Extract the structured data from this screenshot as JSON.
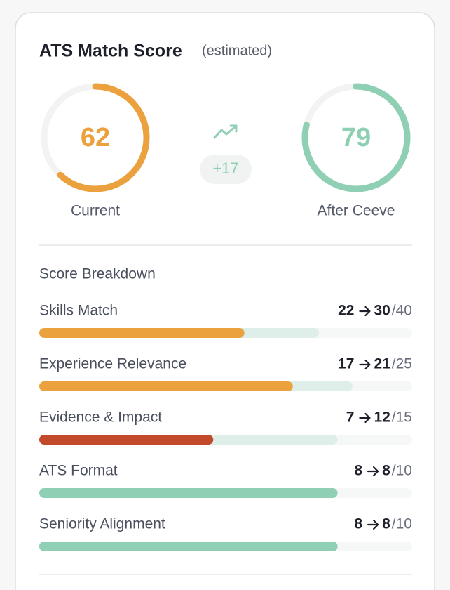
{
  "header": {
    "title": "ATS Match Score",
    "subtitle": "(estimated)"
  },
  "gauges": [
    {
      "value": 62,
      "label": "Current",
      "color": "#eba23e"
    },
    {
      "value": 79,
      "label": "After Ceeve",
      "color": "#8fd0b4"
    }
  ],
  "delta": "+17",
  "breakdown": {
    "title": "Score Breakdown",
    "rows": [
      {
        "name": "Skills Match",
        "from": 22,
        "to": 30,
        "max": {
          "value": 40,
          "label": "/40"
        },
        "color": "#eba23e"
      },
      {
        "name": "Experience Relevance",
        "from": 17,
        "to": 21,
        "max": {
          "value": 25,
          "label": "/25"
        },
        "color": "#eba23e"
      },
      {
        "name": "Evidence & Impact",
        "from": 7,
        "to": 12,
        "max": {
          "value": 15,
          "label": "/15"
        },
        "color": "#c24a2a"
      },
      {
        "name": "ATS Format",
        "from": 8,
        "to": 8,
        "max": {
          "value": 10,
          "label": "/10"
        },
        "color": "#8fd0b4"
      },
      {
        "name": "Seniority Alignment",
        "from": 8,
        "to": 8,
        "max": {
          "value": 10,
          "label": "/10"
        },
        "color": "#8fd0b4"
      }
    ]
  }
}
